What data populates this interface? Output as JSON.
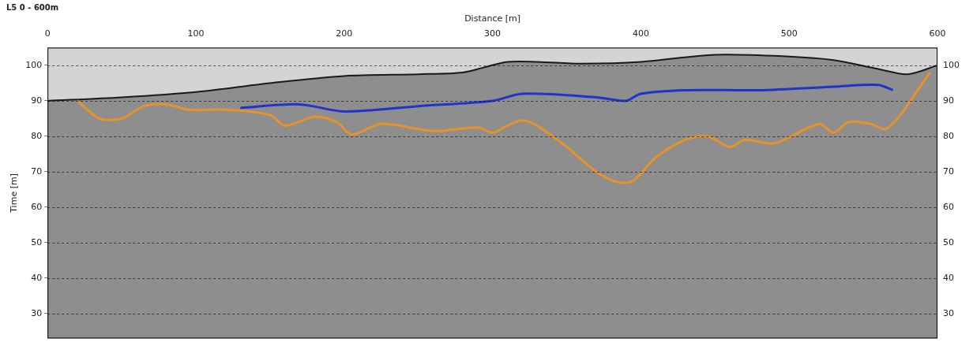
{
  "chart_data": {
    "type": "line",
    "title": "L5 0 - 600m",
    "x_label": "Distance [m]",
    "y_label": "Time [m]",
    "xlim": [
      0,
      600
    ],
    "xticks": [
      0,
      100,
      200,
      300,
      400,
      500,
      600
    ],
    "ylim": [
      23,
      105
    ],
    "yticks": [
      30,
      40,
      50,
      60,
      70,
      80,
      90,
      100
    ],
    "grid": true,
    "series": [
      {
        "type": "area",
        "color": "#1a1a1a",
        "x": [
          0,
          50,
          100,
          150,
          200,
          250,
          280,
          295,
          310,
          330,
          360,
          400,
          450,
          500,
          530,
          560,
          580,
          600
        ],
        "values": [
          90,
          91,
          92.5,
          95,
          97,
          97.5,
          98,
          99.5,
          101,
          101,
          100.5,
          101,
          103,
          102.5,
          101.5,
          99,
          97.5,
          100
        ]
      },
      {
        "color": "#2233cc",
        "x": [
          130,
          170,
          200,
          250,
          300,
          320,
          370,
          390,
          400,
          430,
          480,
          530,
          560,
          570
        ],
        "values": [
          88,
          89,
          87,
          88.5,
          90,
          92,
          91,
          90,
          92,
          93,
          93,
          94,
          94.5,
          93
        ]
      },
      {
        "color": "#e8922a",
        "x": [
          20,
          35,
          50,
          65,
          80,
          95,
          120,
          150,
          160,
          180,
          195,
          205,
          225,
          260,
          290,
          300,
          310,
          320,
          330,
          350,
          370,
          385,
          395,
          410,
          430,
          445,
          460,
          470,
          490,
          520,
          530,
          540,
          555,
          565,
          575,
          585,
          595
        ],
        "values": [
          90,
          85,
          85,
          88.5,
          89,
          87.5,
          87.5,
          86,
          83,
          85.5,
          84,
          80.5,
          83.5,
          81.5,
          82.5,
          81,
          83,
          84.5,
          83,
          77,
          70,
          67,
          67.5,
          74,
          79,
          80,
          77,
          79,
          78,
          83.5,
          81,
          84,
          83.5,
          82,
          86,
          92,
          98
        ]
      }
    ]
  }
}
